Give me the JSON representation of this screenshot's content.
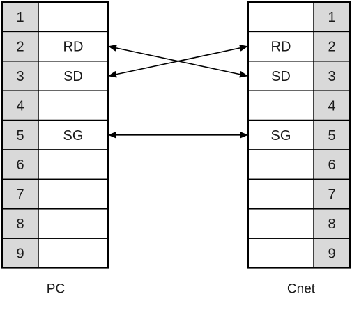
{
  "left_connector": {
    "label": "PC",
    "pins": [
      {
        "num": "1",
        "signal": ""
      },
      {
        "num": "2",
        "signal": "RD"
      },
      {
        "num": "3",
        "signal": "SD"
      },
      {
        "num": "4",
        "signal": ""
      },
      {
        "num": "5",
        "signal": "SG"
      },
      {
        "num": "6",
        "signal": ""
      },
      {
        "num": "7",
        "signal": ""
      },
      {
        "num": "8",
        "signal": ""
      },
      {
        "num": "9",
        "signal": ""
      }
    ]
  },
  "right_connector": {
    "label": "Cnet",
    "pins": [
      {
        "num": "1",
        "signal": ""
      },
      {
        "num": "2",
        "signal": "RD"
      },
      {
        "num": "3",
        "signal": "SD"
      },
      {
        "num": "4",
        "signal": ""
      },
      {
        "num": "5",
        "signal": "SG"
      },
      {
        "num": "6",
        "signal": ""
      },
      {
        "num": "7",
        "signal": ""
      },
      {
        "num": "8",
        "signal": ""
      },
      {
        "num": "9",
        "signal": ""
      }
    ]
  },
  "connections": [
    {
      "from_left_pin": "2",
      "to_right_pin": "3"
    },
    {
      "from_left_pin": "3",
      "to_right_pin": "2"
    },
    {
      "from_left_pin": "5",
      "to_right_pin": "5"
    }
  ],
  "colors": {
    "pin_fill": "#d9d9d9",
    "cell_fill": "#ffffff",
    "stroke": "#000000"
  }
}
